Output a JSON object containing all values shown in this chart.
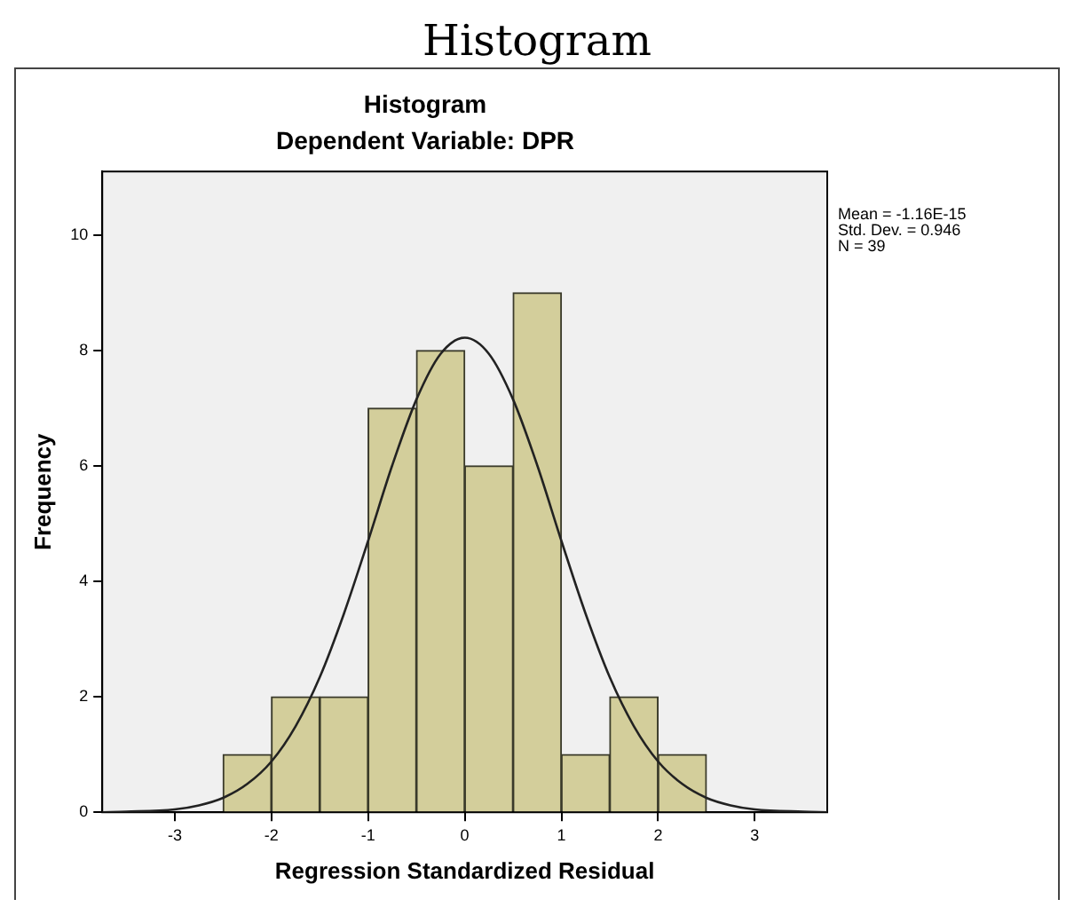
{
  "chart_data": {
    "type": "histogram",
    "title": "Histogram",
    "subtitle": "Dependent Variable: DPR",
    "xlabel": "Regression Standardized Residual",
    "ylabel": "Frequency",
    "bins": [
      -2.5,
      -2,
      -1.5,
      -1,
      -0.5,
      0,
      0.5,
      1,
      1.5,
      2,
      2.5
    ],
    "values": [
      1,
      2,
      2,
      7,
      8,
      6,
      9,
      1,
      2,
      1
    ],
    "color": "#d3ce9b",
    "series": [
      {
        "type": "line",
        "color": "#222222",
        "x": [
          -3.75,
          -3.5,
          -3,
          -2.75,
          -2.5,
          -2.25,
          -2,
          -1.75,
          -1.5,
          -1.25,
          -1,
          -0.75,
          -0.5,
          -0.25,
          0,
          0.25,
          0.5,
          0.75,
          1,
          1.25,
          1.5,
          1.75,
          2,
          2.25,
          2.5,
          2.75,
          3,
          3.5,
          3.75
        ],
        "values": [
          0,
          0.01,
          0.05,
          0.12,
          0.25,
          0.49,
          0.88,
          1.49,
          2.34,
          3.44,
          4.7,
          6.01,
          7.15,
          7.94,
          8.22,
          7.94,
          7.15,
          6.01,
          4.7,
          3.44,
          2.34,
          1.49,
          0.88,
          0.49,
          0.25,
          0.12,
          0.05,
          0.01,
          0
        ]
      }
    ],
    "xlim": [
      -3.75,
      3.75
    ],
    "xticks": [
      -3,
      -2,
      -1,
      0,
      1,
      2,
      3
    ],
    "ylim": [
      0,
      11.1
    ],
    "yticks": [
      0,
      2,
      4,
      6,
      8,
      10
    ],
    "grid": false,
    "legend": false,
    "marker": "none",
    "line_style": "solid",
    "annotations": [
      "Histogram",
      "Mean = -1.16E-15",
      "Std. Dev. = 0.946",
      "N = 39"
    ]
  }
}
